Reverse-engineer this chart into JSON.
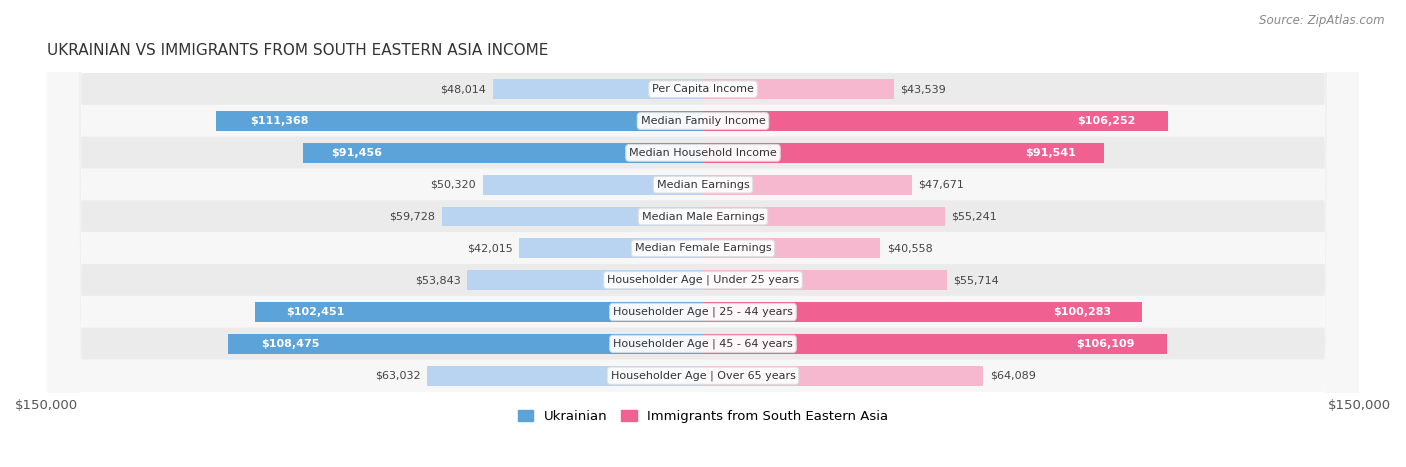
{
  "title": "UKRAINIAN VS IMMIGRANTS FROM SOUTH EASTERN ASIA INCOME",
  "source": "Source: ZipAtlas.com",
  "categories": [
    "Per Capita Income",
    "Median Family Income",
    "Median Household Income",
    "Median Earnings",
    "Median Male Earnings",
    "Median Female Earnings",
    "Householder Age | Under 25 years",
    "Householder Age | 25 - 44 years",
    "Householder Age | 45 - 64 years",
    "Householder Age | Over 65 years"
  ],
  "ukrainian_values": [
    48014,
    111368,
    91456,
    50320,
    59728,
    42015,
    53843,
    102451,
    108475,
    63032
  ],
  "immigrant_values": [
    43539,
    106252,
    91541,
    47671,
    55241,
    40558,
    55714,
    100283,
    106109,
    64089
  ],
  "ukrainian_labels": [
    "$48,014",
    "$111,368",
    "$91,456",
    "$50,320",
    "$59,728",
    "$42,015",
    "$53,843",
    "$102,451",
    "$108,475",
    "$63,032"
  ],
  "immigrant_labels": [
    "$43,539",
    "$106,252",
    "$91,541",
    "$47,671",
    "$55,241",
    "$40,558",
    "$55,714",
    "$100,283",
    "$106,109",
    "$64,089"
  ],
  "uk_color_light": "#b8d4f0",
  "uk_color_dark": "#5ba3d9",
  "im_color_light": "#f5b8ce",
  "im_color_dark": "#f06090",
  "uk_threshold": 75000,
  "im_threshold": 75000,
  "max_value": 150000,
  "background_color": "#ffffff",
  "legend_ukrainian": "Ukrainian",
  "legend_immigrant": "Immigrants from South Eastern Asia",
  "xlabel_left": "$150,000",
  "xlabel_right": "$150,000"
}
